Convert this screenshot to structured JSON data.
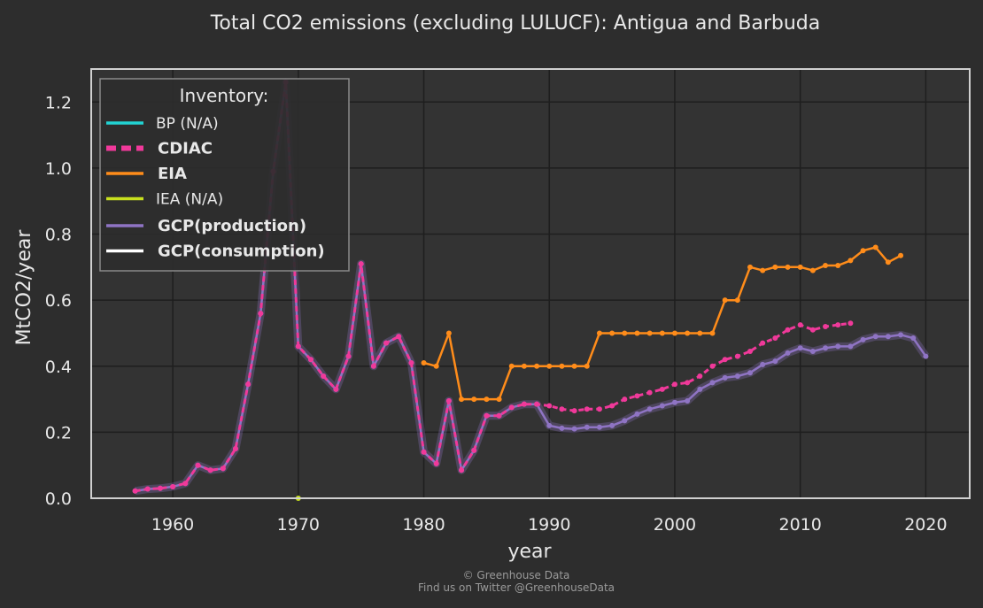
{
  "chart_data": {
    "type": "line",
    "title": "Total CO2 emissions (excluding LULUCF): Antigua and Barbuda",
    "xlabel": "year",
    "ylabel": "MtCO2/year",
    "xlim": [
      1953.5,
      2023.5
    ],
    "ylim": [
      0,
      1.3
    ],
    "xticks": [
      1960,
      1970,
      1980,
      1990,
      2000,
      2010,
      2020
    ],
    "yticks": [
      0.0,
      0.2,
      0.4,
      0.6,
      0.8,
      1.0,
      1.2
    ],
    "ytick_labels": [
      "0.0",
      "0.2",
      "0.4",
      "0.6",
      "0.8",
      "1.0",
      "1.2"
    ],
    "grid": true,
    "legend_title": "Inventory:",
    "legend_position": "top-left",
    "legend": [
      {
        "label": "BP (N/A)",
        "color": "#22d3d3",
        "bold": false,
        "dash": false
      },
      {
        "label": "CDIAC",
        "color": "#f0399a",
        "bold": true,
        "dash": true
      },
      {
        "label": "EIA",
        "color": "#ff8c1a",
        "bold": true,
        "dash": false
      },
      {
        "label": "IEA (N/A)",
        "color": "#c8e01e",
        "bold": false,
        "dash": false
      },
      {
        "label": "GCP(production)",
        "color": "#8f74c4",
        "bold": true,
        "dash": false
      },
      {
        "label": "GCP(consumption)",
        "color": "#ffffff",
        "bold": true,
        "dash": false
      }
    ],
    "series": [
      {
        "name": "CDIAC",
        "color": "#f0399a",
        "dash": true,
        "x": [
          1957,
          1958,
          1959,
          1960,
          1961,
          1962,
          1963,
          1964,
          1965,
          1966,
          1967,
          1968,
          1969,
          1970,
          1971,
          1972,
          1973,
          1974,
          1975,
          1976,
          1977,
          1978,
          1979,
          1980,
          1981,
          1982,
          1983,
          1984,
          1985,
          1986,
          1987,
          1988,
          1989,
          1990,
          1991,
          1992,
          1993,
          1994,
          1995,
          1996,
          1997,
          1998,
          1999,
          2000,
          2001,
          2002,
          2003,
          2004,
          2005,
          2006,
          2007,
          2008,
          2009,
          2010,
          2011,
          2012,
          2013,
          2014
        ],
        "y": [
          0.022,
          0.028,
          0.03,
          0.035,
          0.045,
          0.1,
          0.085,
          0.09,
          0.15,
          0.345,
          0.56,
          0.99,
          1.26,
          0.46,
          0.42,
          0.37,
          0.33,
          0.43,
          0.71,
          0.4,
          0.47,
          0.49,
          0.41,
          0.14,
          0.105,
          0.295,
          0.085,
          0.145,
          0.25,
          0.25,
          0.275,
          0.285,
          0.285,
          0.28,
          0.27,
          0.265,
          0.27,
          0.27,
          0.28,
          0.3,
          0.31,
          0.32,
          0.33,
          0.345,
          0.35,
          0.37,
          0.4,
          0.42,
          0.43,
          0.445,
          0.47,
          0.485,
          0.51,
          0.525,
          0.51,
          0.52,
          0.525,
          0.53
        ]
      },
      {
        "name": "EIA",
        "color": "#ff8c1a",
        "dash": false,
        "x": [
          1980,
          1981,
          1982,
          1983,
          1984,
          1985,
          1986,
          1987,
          1988,
          1989,
          1990,
          1991,
          1992,
          1993,
          1994,
          1995,
          1996,
          1997,
          1998,
          1999,
          2000,
          2001,
          2002,
          2003,
          2004,
          2005,
          2006,
          2007,
          2008,
          2009,
          2010,
          2011,
          2012,
          2013,
          2014,
          2015,
          2016,
          2017,
          2018
        ],
        "y": [
          0.41,
          0.4,
          0.5,
          0.3,
          0.3,
          0.3,
          0.3,
          0.4,
          0.4,
          0.4,
          0.4,
          0.4,
          0.4,
          0.4,
          0.5,
          0.5,
          0.5,
          0.5,
          0.5,
          0.5,
          0.5,
          0.5,
          0.5,
          0.5,
          0.6,
          0.6,
          0.7,
          0.69,
          0.7,
          0.7,
          0.7,
          0.69,
          0.705,
          0.705,
          0.72,
          0.75,
          0.76,
          0.715,
          0.735
        ]
      },
      {
        "name": "GCP(production)",
        "color": "#8f74c4",
        "dash": false,
        "x": [
          1957,
          1958,
          1959,
          1960,
          1961,
          1962,
          1963,
          1964,
          1965,
          1966,
          1967,
          1968,
          1969,
          1970,
          1971,
          1972,
          1973,
          1974,
          1975,
          1976,
          1977,
          1978,
          1979,
          1980,
          1981,
          1982,
          1983,
          1984,
          1985,
          1986,
          1987,
          1988,
          1989,
          1990,
          1991,
          1992,
          1993,
          1994,
          1995,
          1996,
          1997,
          1998,
          1999,
          2000,
          2001,
          2002,
          2003,
          2004,
          2005,
          2006,
          2007,
          2008,
          2009,
          2010,
          2011,
          2012,
          2013,
          2014,
          2015,
          2016,
          2017,
          2018,
          2019,
          2020
        ],
        "y": [
          0.022,
          0.028,
          0.03,
          0.035,
          0.045,
          0.1,
          0.085,
          0.09,
          0.15,
          0.345,
          0.56,
          0.99,
          1.26,
          0.46,
          0.42,
          0.37,
          0.33,
          0.43,
          0.71,
          0.4,
          0.47,
          0.49,
          0.41,
          0.14,
          0.105,
          0.295,
          0.085,
          0.145,
          0.25,
          0.25,
          0.275,
          0.285,
          0.285,
          0.22,
          0.212,
          0.21,
          0.215,
          0.215,
          0.22,
          0.235,
          0.255,
          0.27,
          0.28,
          0.29,
          0.295,
          0.33,
          0.35,
          0.365,
          0.37,
          0.38,
          0.405,
          0.415,
          0.44,
          0.455,
          0.445,
          0.455,
          0.46,
          0.46,
          0.48,
          0.49,
          0.49,
          0.495,
          0.485,
          0.43
        ]
      },
      {
        "name": "IEA (N/A)",
        "color": "#c8e01e",
        "dash": false,
        "x": [
          1970
        ],
        "y": [
          0.0
        ]
      }
    ]
  },
  "footer": {
    "line1": "© Greenhouse Data",
    "line2": "Find us on Twitter @GreenhouseData"
  }
}
